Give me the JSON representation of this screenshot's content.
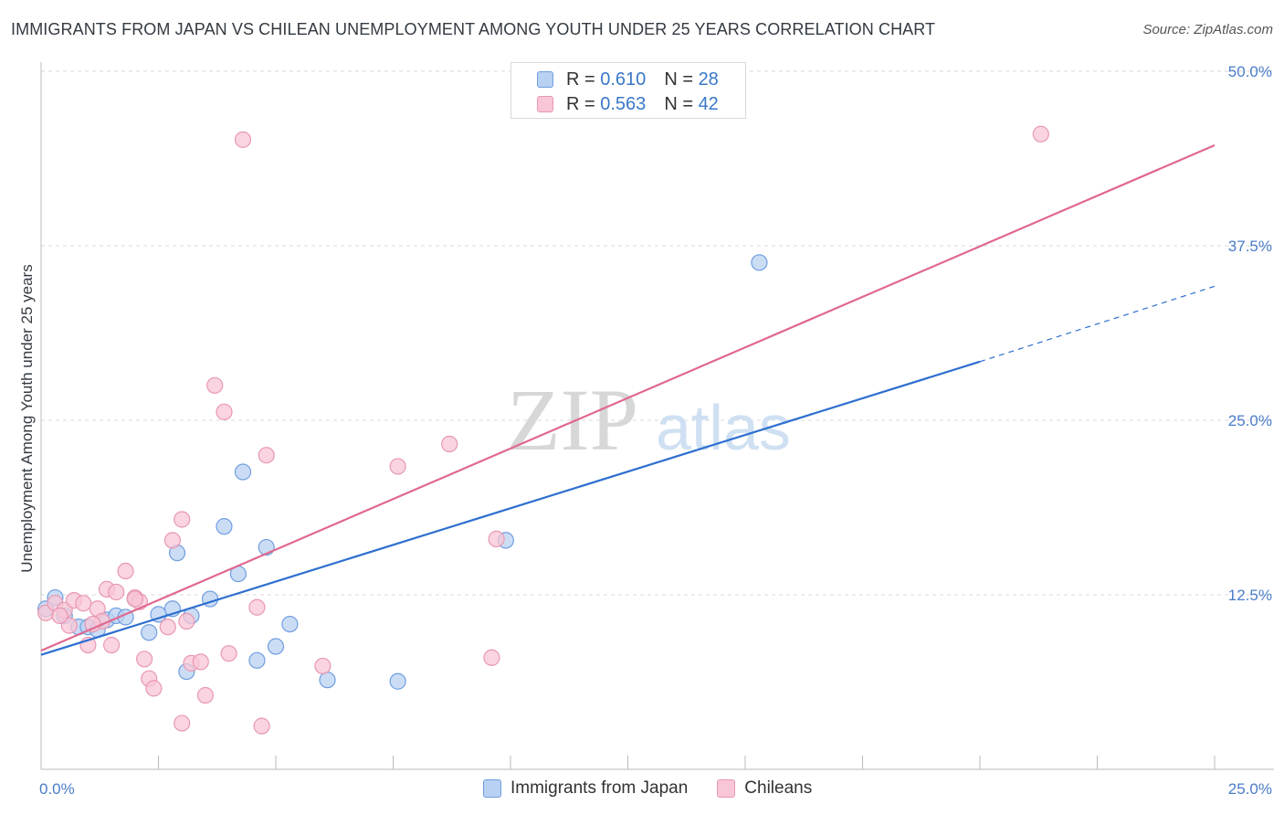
{
  "title": "IMMIGRANTS FROM JAPAN VS CHILEAN UNEMPLOYMENT AMONG YOUTH UNDER 25 YEARS CORRELATION CHART",
  "source": "Source: ZipAtlas.com",
  "watermark": {
    "zip": "ZIP",
    "atlas": "atlas"
  },
  "legend": {
    "series": [
      {
        "name": "Immigrants from Japan",
        "r_label": "R =",
        "r": "0.610",
        "n_label": "N =",
        "n": "28"
      },
      {
        "name": "Chileans",
        "r_label": "R =",
        "r": "0.563",
        "n_label": "N =",
        "n": "42"
      }
    ]
  },
  "colors": {
    "blue_fill": "#b9d1f2",
    "blue_stroke": "#6f9ee0",
    "blue_line": "#2d6fcf",
    "pink_fill": "#f8c6d6",
    "pink_stroke": "#e898b2",
    "pink_line": "#e06890",
    "tick_text": "#4a7cc9",
    "grid": "#d9d9d9"
  },
  "chart_data": {
    "type": "scatter",
    "title": "IMMIGRANTS FROM JAPAN VS CHILEAN UNEMPLOYMENT AMONG YOUTH UNDER 25 YEARS CORRELATION CHART",
    "xlabel": "",
    "ylabel": "Unemployment Among Youth under 25 years",
    "xlim": [
      0,
      25
    ],
    "ylim": [
      0,
      50
    ],
    "x_tick_labels": [
      "0.0%",
      "25.0%"
    ],
    "y_ticks": [
      12.5,
      25.0,
      37.5,
      50.0
    ],
    "y_tick_labels": [
      "12.5%",
      "25.0%",
      "37.5%",
      "50.0%"
    ],
    "grid": true,
    "series": [
      {
        "name": "Immigrants from Japan",
        "points": [
          [
            0.1,
            11.5
          ],
          [
            0.3,
            12.3
          ],
          [
            0.5,
            11.0
          ],
          [
            0.8,
            10.2
          ],
          [
            1.0,
            10.2
          ],
          [
            1.2,
            10.0
          ],
          [
            1.4,
            10.7
          ],
          [
            1.6,
            11.0
          ],
          [
            1.8,
            10.9
          ],
          [
            2.0,
            12.2
          ],
          [
            2.3,
            9.8
          ],
          [
            2.5,
            11.1
          ],
          [
            2.8,
            11.5
          ],
          [
            2.9,
            15.5
          ],
          [
            3.1,
            7.0
          ],
          [
            3.2,
            11.0
          ],
          [
            3.6,
            12.2
          ],
          [
            3.9,
            17.4
          ],
          [
            4.2,
            14.0
          ],
          [
            4.3,
            21.3
          ],
          [
            4.6,
            7.8
          ],
          [
            4.8,
            15.9
          ],
          [
            5.0,
            8.8
          ],
          [
            5.3,
            10.4
          ],
          [
            6.1,
            6.4
          ],
          [
            9.9,
            16.4
          ],
          [
            15.3,
            36.3
          ],
          [
            7.6,
            6.3
          ]
        ],
        "trend": {
          "x": [
            0,
            20
          ],
          "y": [
            8.2,
            29.2
          ],
          "dashed_extension": {
            "x": [
              20,
              25
            ],
            "y": [
              29.2,
              34.6
            ]
          }
        }
      },
      {
        "name": "Chileans",
        "points": [
          [
            0.1,
            11.2
          ],
          [
            0.3,
            11.9
          ],
          [
            0.5,
            11.4
          ],
          [
            0.6,
            10.3
          ],
          [
            0.7,
            12.1
          ],
          [
            0.9,
            11.9
          ],
          [
            1.0,
            8.9
          ],
          [
            1.2,
            11.5
          ],
          [
            1.3,
            10.6
          ],
          [
            1.4,
            12.9
          ],
          [
            1.5,
            8.9
          ],
          [
            1.6,
            12.7
          ],
          [
            1.8,
            14.2
          ],
          [
            2.0,
            12.3
          ],
          [
            2.1,
            12.0
          ],
          [
            2.2,
            7.9
          ],
          [
            2.3,
            6.5
          ],
          [
            2.4,
            5.8
          ],
          [
            2.7,
            10.2
          ],
          [
            2.8,
            16.4
          ],
          [
            3.0,
            17.9
          ],
          [
            3.0,
            3.3
          ],
          [
            3.1,
            10.6
          ],
          [
            3.2,
            7.6
          ],
          [
            3.4,
            7.7
          ],
          [
            3.5,
            5.3
          ],
          [
            3.7,
            27.5
          ],
          [
            3.9,
            25.6
          ],
          [
            4.0,
            8.3
          ],
          [
            4.6,
            11.6
          ],
          [
            4.7,
            3.1
          ],
          [
            4.8,
            22.5
          ],
          [
            4.3,
            45.1
          ],
          [
            6.0,
            7.4
          ],
          [
            7.6,
            21.7
          ],
          [
            8.7,
            23.3
          ],
          [
            9.6,
            8.0
          ],
          [
            9.7,
            16.5
          ],
          [
            21.3,
            45.5
          ],
          [
            2.0,
            12.2
          ],
          [
            1.1,
            10.4
          ],
          [
            0.4,
            11.0
          ]
        ],
        "trend": {
          "x": [
            0,
            25
          ],
          "y": [
            8.5,
            44.7
          ]
        }
      }
    ]
  }
}
